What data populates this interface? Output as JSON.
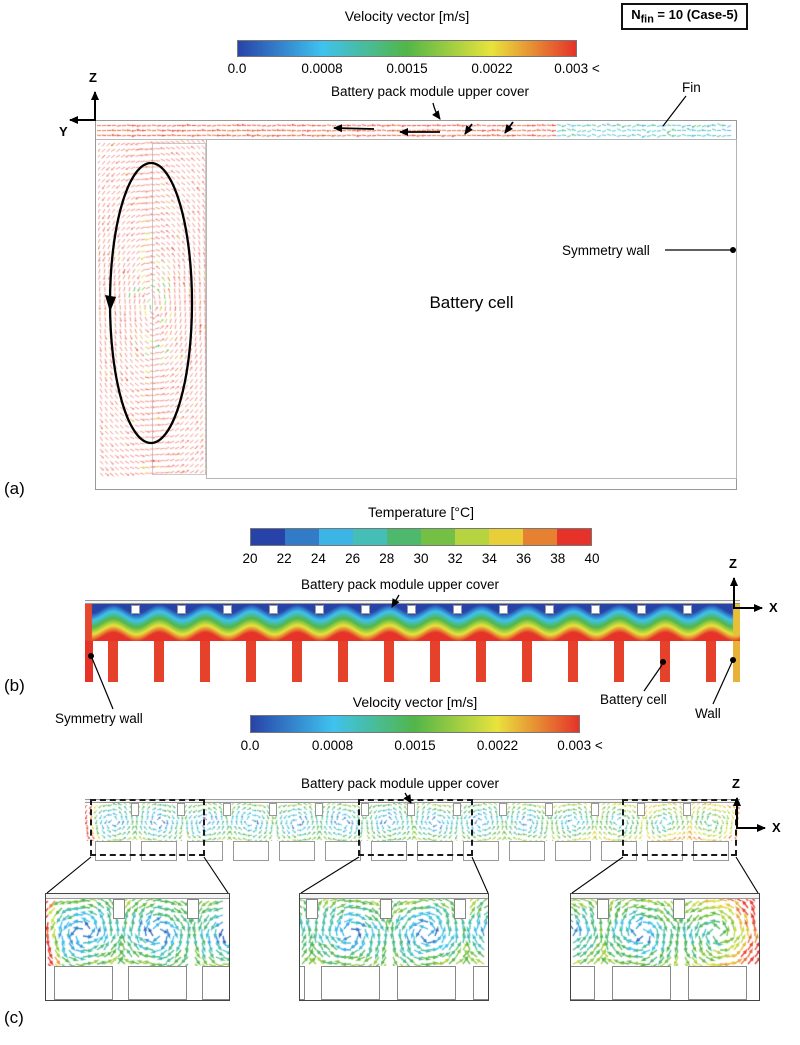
{
  "case_box": {
    "prefix": "N",
    "subscript": "fin",
    "suffix": " = 10 (Case-5)"
  },
  "panel_a": {
    "tag": "(a)",
    "colorbar": {
      "title": "Velocity vector [m/s]",
      "ticks": [
        "0.0",
        "0.0008",
        "0.0015",
        "0.0022",
        "0.003 <"
      ]
    },
    "labels": {
      "upper_cover": "Battery pack module upper cover",
      "fin": "Fin",
      "symmetry_wall": "Symmetry wall",
      "battery_cell": "Battery cell"
    },
    "axes": {
      "vertical": "Z",
      "horizontal": "Y"
    }
  },
  "panel_b": {
    "tag": "(b)",
    "colorbar": {
      "title": "Temperature [°C]",
      "ticks": [
        "20",
        "22",
        "24",
        "26",
        "28",
        "30",
        "32",
        "34",
        "36",
        "38",
        "40"
      ]
    },
    "labels": {
      "upper_cover": "Battery pack module upper cover",
      "symmetry_wall": "Symmetry wall",
      "battery_cell": "Battery cell",
      "wall": "Wall"
    },
    "axes": {
      "vertical": "Z",
      "horizontal": "X"
    }
  },
  "panel_c": {
    "tag": "(c)",
    "colorbar": {
      "title": "Velocity vector [m/s]",
      "ticks": [
        "0.0",
        "0.0008",
        "0.0015",
        "0.0022",
        "0.003 <"
      ]
    },
    "labels": {
      "upper_cover": "Battery pack module upper cover"
    },
    "axes": {
      "vertical": "Z",
      "horizontal": "X"
    }
  },
  "colors": {
    "cmap_stops": [
      "#2843a8",
      "#3fc2ee",
      "#52b648",
      "#e8e33c",
      "#e5332a"
    ],
    "vector_red": "#f0857a"
  }
}
